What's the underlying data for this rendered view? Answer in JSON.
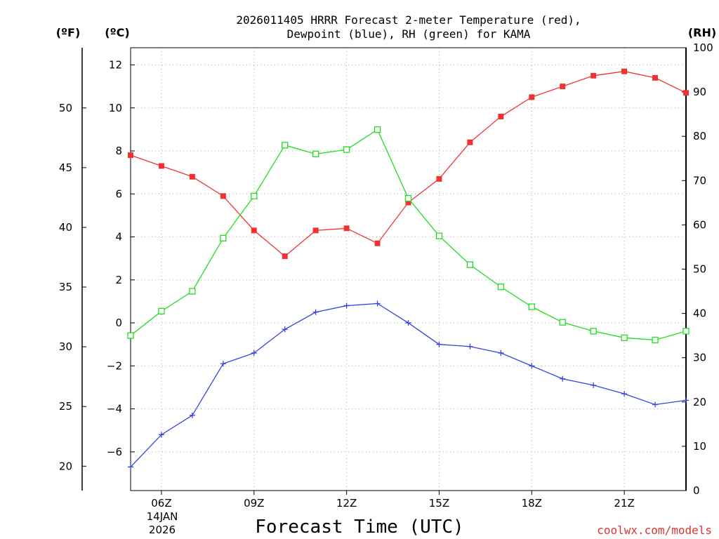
{
  "title_line1": "2026011405 HRRR Forecast 2-meter Temperature (red),",
  "title_line2": "Dewpoint (blue), RH (green) for KAMA",
  "units": {
    "fahrenheit": "(ºF)",
    "celsius": "(ºC)",
    "rh": "(RH)"
  },
  "xaxis": {
    "label": "Forecast Time (UTC)",
    "date_line1": "14JAN",
    "date_line2": "2026"
  },
  "credit": "coolwx.com/models",
  "chart_data": {
    "type": "line",
    "x_hours": [
      5,
      6,
      7,
      8,
      9,
      10,
      11,
      12,
      13,
      14,
      15,
      16,
      17,
      18,
      19,
      20,
      21,
      22,
      23
    ],
    "xlim": [
      5,
      23
    ],
    "x_ticks": [
      {
        "hour": 6,
        "label": "06Z"
      },
      {
        "hour": 9,
        "label": "09Z"
      },
      {
        "hour": 12,
        "label": "12Z"
      },
      {
        "hour": 15,
        "label": "15Z"
      },
      {
        "hour": 18,
        "label": "18Z"
      },
      {
        "hour": 21,
        "label": "21Z"
      }
    ],
    "celsius_axis": {
      "ylim": [
        -7.8,
        12.8
      ],
      "ticks": [
        -6,
        -4,
        -2,
        0,
        2,
        4,
        6,
        8,
        10,
        12
      ],
      "labels": [
        "−6",
        "−4",
        "−2",
        "0",
        "2",
        "4",
        "6",
        "8",
        "10",
        "12"
      ]
    },
    "fahrenheit_axis": {
      "ticks": [
        20,
        25,
        30,
        35,
        40,
        45,
        50
      ],
      "labels": [
        "20",
        "25",
        "30",
        "35",
        "40",
        "45",
        "50"
      ]
    },
    "rh_axis": {
      "ylim": [
        0,
        100
      ],
      "ticks": [
        0,
        10,
        20,
        30,
        40,
        50,
        60,
        70,
        80,
        90,
        100
      ],
      "labels": [
        "0",
        "10",
        "20",
        "30",
        "40",
        "50",
        "60",
        "70",
        "80",
        "90",
        "100"
      ]
    },
    "series": [
      {
        "name": "2-meter Temperature",
        "axis": "celsius",
        "color": "#ee3333",
        "marker": "filled-square",
        "values": [
          7.8,
          7.3,
          6.8,
          5.9,
          4.3,
          3.1,
          4.3,
          4.4,
          3.7,
          5.6,
          6.7,
          8.4,
          9.6,
          10.5,
          11.0,
          11.5,
          11.7,
          11.4,
          10.7
        ]
      },
      {
        "name": "Dewpoint",
        "axis": "celsius",
        "color": "#3344dd",
        "marker": "plus",
        "values": [
          -6.7,
          -5.2,
          -4.3,
          -1.9,
          -1.4,
          -0.3,
          0.5,
          0.8,
          0.9,
          0.0,
          -1.0,
          -1.1,
          -1.4,
          -2.0,
          -2.6,
          -2.9,
          -3.3,
          -3.8,
          -3.6
        ]
      },
      {
        "name": "RH",
        "axis": "rh",
        "color": "#22dd22",
        "marker": "open-square",
        "values": [
          35,
          40.5,
          45,
          57,
          66.5,
          78,
          76,
          77,
          81.5,
          66,
          57.5,
          51,
          46,
          41.5,
          38,
          36,
          34.5,
          34,
          36
        ]
      }
    ]
  }
}
